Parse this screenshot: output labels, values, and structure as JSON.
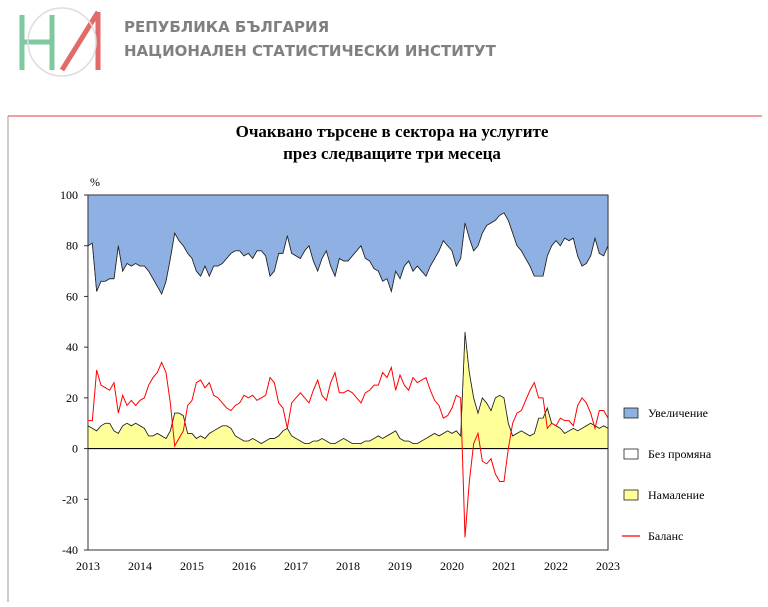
{
  "header": {
    "line1": "РЕПУБЛИКА БЪЛГАРИЯ",
    "line2": "НАЦИОНАЛЕН СТАТИСТИЧЕСКИ ИНСТИТУТ"
  },
  "chart_data": {
    "type": "area",
    "title": "Очаквано търсене в сектора на услугите",
    "subtitle": "през следващите три месеца",
    "y_label": "%",
    "categories": [
      "2013",
      null,
      null,
      null,
      null,
      null,
      null,
      null,
      null,
      null,
      null,
      null,
      "2014",
      null,
      null,
      null,
      null,
      null,
      null,
      null,
      null,
      null,
      null,
      null,
      "2015",
      null,
      null,
      null,
      null,
      null,
      null,
      null,
      null,
      null,
      null,
      null,
      "2016",
      null,
      null,
      null,
      null,
      null,
      null,
      null,
      null,
      null,
      null,
      null,
      "2017",
      null,
      null,
      null,
      null,
      null,
      null,
      null,
      null,
      null,
      null,
      null,
      "2018",
      null,
      null,
      null,
      null,
      null,
      null,
      null,
      null,
      null,
      null,
      null,
      "2019",
      null,
      null,
      null,
      null,
      null,
      null,
      null,
      null,
      null,
      null,
      null,
      "2020",
      null,
      null,
      null,
      null,
      null,
      null,
      null,
      null,
      null,
      null,
      null,
      "2021",
      null,
      null,
      null,
      null,
      null,
      null,
      null,
      null,
      null,
      null,
      null,
      "2022",
      null,
      null,
      null,
      null,
      null,
      null,
      null,
      null,
      null,
      null,
      null,
      "2023"
    ],
    "ylim": [
      -40,
      100
    ],
    "yticks": [
      -40,
      -20,
      0,
      20,
      40,
      60,
      80,
      100
    ],
    "series": [
      {
        "name": "Увеличение",
        "color": "#8eb0e2",
        "values": [
          20,
          19,
          38,
          34,
          34,
          33,
          33,
          20,
          30,
          27,
          28,
          27,
          28,
          28,
          30,
          33,
          36,
          39,
          34,
          25,
          15,
          18,
          20,
          23,
          25,
          30,
          32,
          28,
          32,
          28,
          28,
          27,
          25,
          23,
          22,
          22,
          24,
          23,
          25,
          22,
          22,
          24,
          32,
          30,
          23,
          23,
          16,
          23,
          24,
          25,
          22,
          20,
          26,
          30,
          25,
          22,
          28,
          32,
          25,
          26,
          26,
          24,
          22,
          20,
          25,
          26,
          29,
          30,
          34,
          33,
          38,
          30,
          33,
          28,
          26,
          30,
          28,
          30,
          32,
          28,
          25,
          22,
          18,
          20,
          22,
          28,
          25,
          11,
          17,
          22,
          20,
          15,
          12,
          11,
          10,
          8,
          7,
          10,
          15,
          20,
          22,
          25,
          28,
          32,
          32,
          32,
          24,
          20,
          18,
          20,
          17,
          18,
          17,
          24,
          28,
          27,
          24,
          17,
          23,
          24,
          20
        ]
      },
      {
        "name": "Без промяна",
        "color": "#ffffff",
        "values": [
          71,
          73,
          55,
          57,
          56,
          57,
          60,
          74,
          61,
          63,
          63,
          63,
          63,
          64,
          65,
          62,
          58,
          56,
          62,
          68,
          71,
          68,
          67,
          71,
          69,
          66,
          63,
          68,
          62,
          65,
          64,
          64,
          66,
          69,
          73,
          74,
          73,
          74,
          71,
          75,
          76,
          73,
          64,
          66,
          72,
          70,
          76,
          72,
          72,
          72,
          76,
          78,
          71,
          67,
          71,
          75,
          70,
          66,
          72,
          70,
          71,
          74,
          76,
          78,
          72,
          71,
          67,
          65,
          62,
          62,
          56,
          63,
          63,
          69,
          71,
          68,
          70,
          67,
          64,
          67,
          69,
          73,
          76,
          73,
          72,
          65,
          70,
          43,
          53,
          58,
          66,
          65,
          70,
          74,
          70,
          71,
          73,
          80,
          80,
          74,
          71,
          69,
          67,
          62,
          56,
          56,
          60,
          70,
          73,
          72,
          77,
          75,
          75,
          69,
          64,
          64,
          66,
          74,
          69,
          67,
          72
        ]
      },
      {
        "name": "Намаление",
        "color": "#ffff99",
        "values": [
          9,
          8,
          7,
          9,
          10,
          10,
          7,
          6,
          9,
          10,
          9,
          10,
          9,
          8,
          5,
          5,
          6,
          5,
          4,
          7,
          14,
          14,
          13,
          6,
          6,
          4,
          5,
          4,
          6,
          7,
          8,
          9,
          9,
          8,
          5,
          4,
          3,
          3,
          4,
          3,
          2,
          3,
          4,
          4,
          5,
          7,
          8,
          5,
          4,
          3,
          2,
          2,
          3,
          3,
          4,
          3,
          2,
          2,
          3,
          4,
          3,
          2,
          2,
          2,
          3,
          3,
          4,
          5,
          4,
          5,
          6,
          7,
          4,
          3,
          3,
          2,
          2,
          3,
          4,
          5,
          6,
          5,
          6,
          7,
          6,
          7,
          5,
          46,
          30,
          20,
          14,
          20,
          18,
          15,
          20,
          21,
          20,
          10,
          5,
          6,
          7,
          6,
          5,
          6,
          12,
          12,
          16,
          10,
          9,
          8,
          6,
          7,
          8,
          7,
          8,
          9,
          10,
          9,
          8,
          9,
          8
        ]
      },
      {
        "name": "Баланс",
        "color": "#ff0000",
        "type": "line",
        "values": [
          11,
          11,
          31,
          25,
          24,
          23,
          26,
          14,
          21,
          17,
          19,
          17,
          19,
          20,
          25,
          28,
          30,
          34,
          30,
          18,
          1,
          4,
          7,
          17,
          19,
          26,
          27,
          24,
          26,
          21,
          20,
          18,
          16,
          15,
          17,
          18,
          21,
          20,
          21,
          19,
          20,
          21,
          28,
          26,
          18,
          16,
          8,
          18,
          20,
          22,
          20,
          18,
          23,
          27,
          21,
          19,
          26,
          30,
          22,
          22,
          23,
          22,
          20,
          18,
          22,
          23,
          25,
          25,
          30,
          28,
          32,
          23,
          29,
          25,
          23,
          28,
          26,
          27,
          28,
          23,
          19,
          17,
          12,
          13,
          16,
          21,
          20,
          -35,
          -13,
          2,
          6,
          -5,
          -6,
          -4,
          -10,
          -13,
          -13,
          0,
          10,
          14,
          15,
          19,
          23,
          26,
          20,
          20,
          8,
          10,
          9,
          12,
          11,
          11,
          9,
          17,
          20,
          18,
          14,
          8,
          15,
          15,
          12
        ]
      }
    ]
  }
}
